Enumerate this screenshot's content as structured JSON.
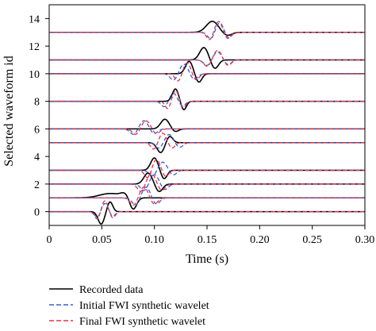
{
  "chart_data": {
    "type": "line",
    "title": "",
    "xlabel": "Time (s)",
    "ylabel": "Selected waveform id",
    "xlim": [
      0,
      0.3
    ],
    "ylim": [
      -1,
      15
    ],
    "x_ticks": [
      0,
      0.05,
      0.1,
      0.15,
      0.2,
      0.25,
      0.3
    ],
    "x_tick_labels": [
      "0",
      "0.05",
      "0.10",
      "0.15",
      "0.20",
      "0.25",
      "0.30"
    ],
    "y_ticks": [
      0,
      2,
      4,
      6,
      8,
      10,
      12,
      14
    ],
    "y_tick_labels": [
      "0",
      "2",
      "4",
      "6",
      "8",
      "10",
      "12",
      "14"
    ],
    "grid": false,
    "legend_position": "bottom-left, below plot",
    "series": [
      {
        "name": "Recorded data",
        "color": "#000000",
        "style": "solid"
      },
      {
        "name": "Initial FWI synthetic wavelet",
        "color": "#3a5fcd",
        "style": "dashed"
      },
      {
        "name": "Final FWI synthetic wavelet",
        "color": "#e8304a",
        "style": "dashed"
      }
    ],
    "traces": [
      {
        "id": 0,
        "baseline": 0,
        "recorded": {
          "center": 0.053,
          "amp": 0.9,
          "width": 0.006,
          "shape": "trough-peak"
        },
        "initial": {
          "center": 0.053,
          "amp": 0.6,
          "width": 0.006
        },
        "final": {
          "center": 0.053,
          "amp": 0.8,
          "width": 0.006
        }
      },
      {
        "id": 1,
        "baseline": 1,
        "recorded": {
          "center": 0.07,
          "amp": 0.9,
          "width": 0.012,
          "shape": "hump-dip"
        },
        "initial": {
          "center": 0.092,
          "amp": 0.8,
          "width": 0.008
        },
        "final": {
          "center": 0.09,
          "amp": 0.8,
          "width": 0.008
        }
      },
      {
        "id": 2,
        "baseline": 2,
        "recorded": {
          "center": 0.094,
          "amp": 0.8,
          "width": 0.008,
          "shape": "peak-dip"
        },
        "initial": {
          "center": 0.1,
          "amp": 0.7,
          "width": 0.008
        },
        "final": {
          "center": 0.097,
          "amp": 0.8,
          "width": 0.008
        }
      },
      {
        "id": 3,
        "baseline": 3,
        "recorded": {
          "center": 0.1,
          "amp": 0.9,
          "width": 0.007,
          "shape": "peak-dip"
        },
        "initial": {
          "center": 0.108,
          "amp": 0.6,
          "width": 0.008
        },
        "final": {
          "center": 0.102,
          "amp": 0.8,
          "width": 0.007
        }
      },
      {
        "id": 4,
        "baseline": 5,
        "recorded": {
          "center": 0.106,
          "amp": 0.8,
          "width": 0.007,
          "shape": "dip-peak"
        },
        "initial": {
          "center": 0.114,
          "amp": 0.6,
          "width": 0.008
        },
        "final": {
          "center": 0.108,
          "amp": 0.7,
          "width": 0.007
        }
      },
      {
        "id": 5,
        "baseline": 6,
        "recorded": {
          "center": 0.11,
          "amp": 0.7,
          "width": 0.007,
          "shape": "peak"
        },
        "initial": {
          "center": 0.09,
          "amp": 0.6,
          "width": 0.008
        },
        "final": {
          "center": 0.092,
          "amp": 0.6,
          "width": 0.008
        }
      },
      {
        "id": 6,
        "baseline": 8,
        "recorded": {
          "center": 0.12,
          "amp": 0.9,
          "width": 0.006,
          "shape": "peak-dip"
        },
        "initial": {
          "center": 0.118,
          "amp": 0.6,
          "width": 0.007
        },
        "final": {
          "center": 0.12,
          "amp": 0.8,
          "width": 0.006
        }
      },
      {
        "id": 7,
        "baseline": 10,
        "recorded": {
          "center": 0.133,
          "amp": 0.9,
          "width": 0.007,
          "shape": "peak-dip"
        },
        "initial": {
          "center": 0.128,
          "amp": 0.7,
          "width": 0.008
        },
        "final": {
          "center": 0.131,
          "amp": 0.8,
          "width": 0.007
        }
      },
      {
        "id": 8,
        "baseline": 11,
        "recorded": {
          "center": 0.147,
          "amp": 0.9,
          "width": 0.008,
          "shape": "peak-dip"
        },
        "initial": {
          "center": 0.16,
          "amp": 0.6,
          "width": 0.008
        },
        "final": {
          "center": 0.16,
          "amp": 0.7,
          "width": 0.008
        }
      },
      {
        "id": 9,
        "baseline": 13,
        "recorded": {
          "center": 0.155,
          "amp": 0.8,
          "width": 0.01,
          "shape": "peak"
        },
        "initial": {
          "center": 0.162,
          "amp": 0.7,
          "width": 0.007
        },
        "final": {
          "center": 0.161,
          "amp": 0.8,
          "width": 0.007
        }
      }
    ]
  }
}
